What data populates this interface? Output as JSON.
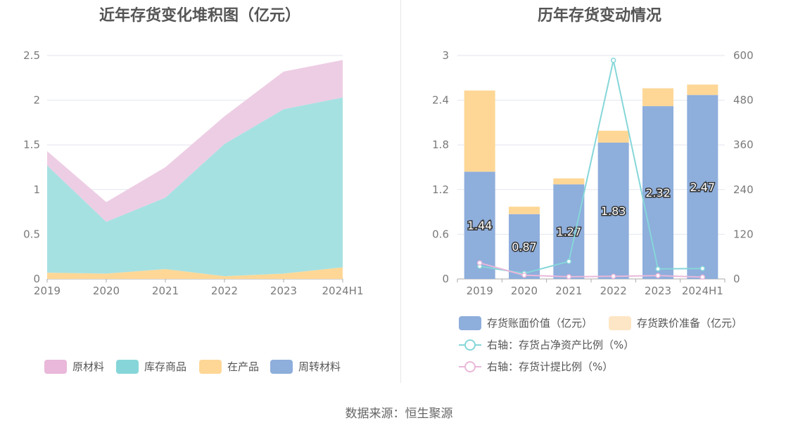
{
  "source": "数据来源：恒生聚源",
  "chart_data": [
    {
      "type": "area",
      "stacked": true,
      "title": "近年存货变化堆积图（亿元）",
      "categories": [
        "2019",
        "2020",
        "2021",
        "2022",
        "2023",
        "2024H1"
      ],
      "ylim": [
        0,
        2.5
      ],
      "yticks": [
        "0",
        "0.5",
        "1",
        "1.5",
        "2",
        "2.5"
      ],
      "series": [
        {
          "name": "周转材料",
          "color": "#8eaedc",
          "values": [
            0,
            0,
            0,
            0,
            0,
            0
          ]
        },
        {
          "name": "在产品",
          "color": "#fed796",
          "values": [
            0.07,
            0.06,
            0.11,
            0.03,
            0.06,
            0.13
          ]
        },
        {
          "name": "库存商品",
          "color": "#a6e1e2",
          "values": [
            1.2,
            0.58,
            0.8,
            1.48,
            1.84,
            1.9
          ]
        },
        {
          "name": "原材料",
          "color": "#edcde4",
          "values": [
            0.16,
            0.22,
            0.34,
            0.31,
            0.42,
            0.42
          ]
        }
      ],
      "legend": [
        "原材料",
        "库存商品",
        "在产品",
        "周转材料"
      ],
      "legend_colors": [
        "#e9b8da",
        "#86d6d9",
        "#fed796",
        "#8eaedc"
      ],
      "grid": true
    },
    {
      "type": "bar",
      "stacked": true,
      "title": "历年存货变动情况",
      "categories": [
        "2019",
        "2020",
        "2021",
        "2022",
        "2023",
        "2024H1"
      ],
      "ylim": [
        0,
        3
      ],
      "yticks": [
        "0",
        "0.6",
        "1.2",
        "1.8",
        "2.4",
        "3"
      ],
      "y2lim": [
        0,
        600
      ],
      "y2ticks": [
        "0",
        "120",
        "240",
        "360",
        "480",
        "600"
      ],
      "series": [
        {
          "name": "存货账面价值（亿元）",
          "color": "#8eaedc",
          "values": [
            1.44,
            0.87,
            1.27,
            1.83,
            2.32,
            2.47
          ],
          "labels": [
            "1.44",
            "0.87",
            "1.27",
            "1.83",
            "2.32",
            "2.47"
          ]
        },
        {
          "name": "存货跌价准备（亿元）",
          "color": "#fed796",
          "legend_color": "#fde6c5",
          "values": [
            1.09,
            0.1,
            0.08,
            0.16,
            0.24,
            0.14
          ]
        }
      ],
      "lines": [
        {
          "name": "右轴：存货占净资产比例（%）",
          "color": "#86d6d9",
          "axis": "right",
          "values": [
            34,
            15,
            47,
            587,
            27,
            28
          ]
        },
        {
          "name": "右轴：存货计提比例（%）",
          "color": "#e9b8da",
          "axis": "right",
          "values": [
            43,
            10,
            6,
            7,
            9,
            5
          ]
        }
      ],
      "grid": true
    }
  ]
}
